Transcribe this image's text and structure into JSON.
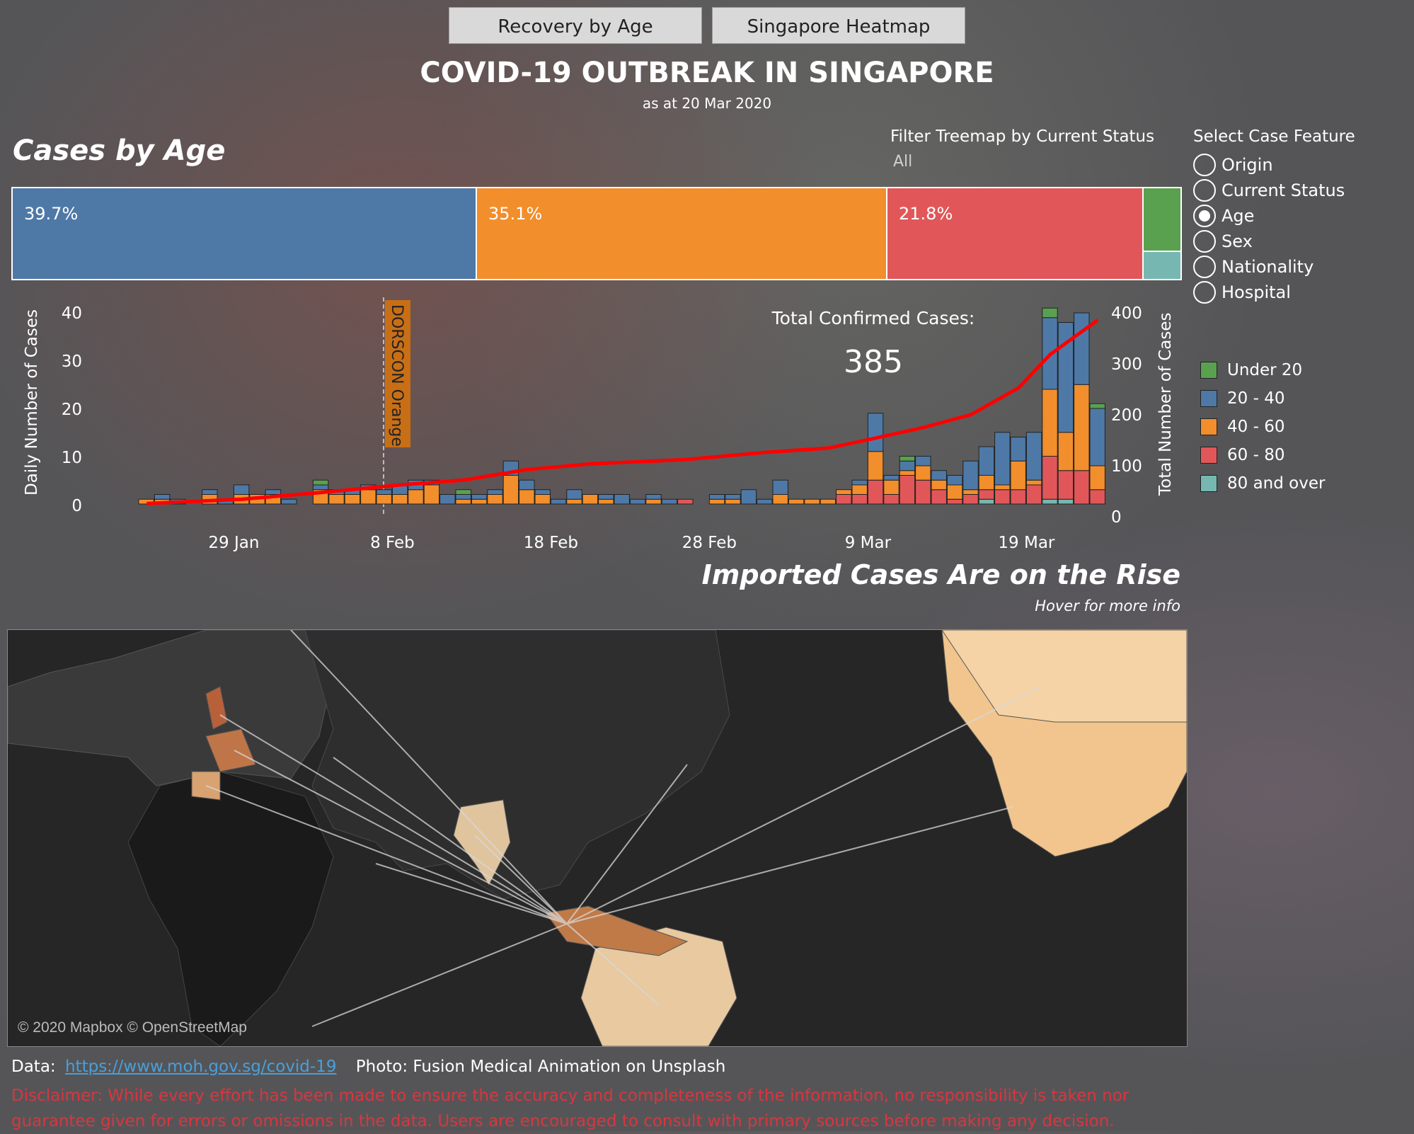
{
  "nav": {
    "button1": "Recovery by Age",
    "button2": "Singapore Heatmap"
  },
  "header": {
    "title": "COVID-19 OUTBREAK IN SINGAPORE",
    "subtitle": "as at 20 Mar 2020"
  },
  "cases_section": {
    "title": "Cases by Age"
  },
  "filter": {
    "label": "Filter Treemap by Current Status",
    "value": "All"
  },
  "feature_select": {
    "label": "Select Case Feature",
    "options": [
      "Origin",
      "Current Status",
      "Age",
      "Sex",
      "Nationality",
      "Hospital"
    ],
    "selected": "Age"
  },
  "treemap": {
    "labels": [
      "39.7%",
      "35.1%",
      "21.8%"
    ],
    "colors": [
      "#4e79a7",
      "#f28e2b",
      "#e15759",
      "#59a14f",
      "#76b7b2"
    ]
  },
  "legend": {
    "items": [
      {
        "label": "Under 20",
        "color": "#59a14f"
      },
      {
        "label": "20 - 40",
        "color": "#4e79a7"
      },
      {
        "label": "40 - 60",
        "color": "#f28e2b"
      },
      {
        "label": "60 - 80",
        "color": "#e15759"
      },
      {
        "label": "80 and over",
        "color": "#76b7b2"
      }
    ]
  },
  "kpi": {
    "label": "Total Confirmed Cases:",
    "value": "385"
  },
  "annotation": {
    "dorscon": "DORSCON Orange"
  },
  "chart_data": {
    "type": "bar",
    "x_tick_labels": [
      "29 Jan",
      "8 Feb",
      "18 Feb",
      "28 Feb",
      "9 Mar",
      "19 Mar"
    ],
    "y_left_label": "Daily Number of Cases",
    "y_right_label": "Total Number of Cases",
    "y_left_ticks": [
      "40",
      "30",
      "20",
      "10",
      "0"
    ],
    "y_right_ticks": [
      "400",
      "300",
      "200",
      "100",
      "0"
    ],
    "ylim_left": [
      0,
      40
    ],
    "ylim_right": [
      0,
      400
    ],
    "stack_order": [
      "80 and over",
      "60 - 80",
      "40 - 60",
      "20 - 40",
      "Under 20"
    ],
    "bars": [
      {
        "date": "23 Jan",
        "stack": [
          0,
          0,
          1,
          0,
          0
        ]
      },
      {
        "date": "24 Jan",
        "stack": [
          0,
          0,
          1,
          1,
          0
        ]
      },
      {
        "date": "25 Jan",
        "stack": [
          0,
          0,
          0,
          1,
          0
        ]
      },
      {
        "date": "27 Jan",
        "stack": [
          0,
          0,
          2,
          1,
          0
        ]
      },
      {
        "date": "28 Jan",
        "stack": [
          0,
          0,
          0,
          1,
          0
        ]
      },
      {
        "date": "29 Jan",
        "stack": [
          0,
          0,
          2,
          2,
          0
        ]
      },
      {
        "date": "30 Jan",
        "stack": [
          0,
          0,
          2,
          0,
          0
        ]
      },
      {
        "date": "31 Jan",
        "stack": [
          0,
          0,
          2,
          1,
          0
        ]
      },
      {
        "date": "1 Feb",
        "stack": [
          0,
          0,
          0,
          1,
          0
        ]
      },
      {
        "date": "3 Feb",
        "stack": [
          0,
          0,
          3,
          1,
          1
        ]
      },
      {
        "date": "4 Feb",
        "stack": [
          0,
          0,
          2,
          1,
          0
        ]
      },
      {
        "date": "5 Feb",
        "stack": [
          0,
          0,
          2,
          1,
          0
        ]
      },
      {
        "date": "6 Feb",
        "stack": [
          0,
          0,
          3,
          1,
          0
        ]
      },
      {
        "date": "7 Feb",
        "stack": [
          0,
          0,
          2,
          1,
          0
        ]
      },
      {
        "date": "8 Feb",
        "stack": [
          0,
          0,
          2,
          2,
          0
        ]
      },
      {
        "date": "9 Feb",
        "stack": [
          0,
          0,
          3,
          2,
          0
        ]
      },
      {
        "date": "10 Feb",
        "stack": [
          0,
          0,
          4,
          1,
          0
        ]
      },
      {
        "date": "11 Feb",
        "stack": [
          0,
          0,
          0,
          2,
          0
        ]
      },
      {
        "date": "12 Feb",
        "stack": [
          0,
          0,
          1,
          1,
          1
        ]
      },
      {
        "date": "13 Feb",
        "stack": [
          0,
          0,
          1,
          1,
          0
        ]
      },
      {
        "date": "14 Feb",
        "stack": [
          0,
          0,
          2,
          1,
          0
        ]
      },
      {
        "date": "15 Feb",
        "stack": [
          0,
          0,
          6,
          3,
          0
        ]
      },
      {
        "date": "16 Feb",
        "stack": [
          0,
          0,
          3,
          2,
          0
        ]
      },
      {
        "date": "17 Feb",
        "stack": [
          0,
          0,
          2,
          1,
          0
        ]
      },
      {
        "date": "18 Feb",
        "stack": [
          0,
          0,
          0,
          1,
          0
        ]
      },
      {
        "date": "19 Feb",
        "stack": [
          0,
          0,
          1,
          2,
          0
        ]
      },
      {
        "date": "20 Feb",
        "stack": [
          0,
          0,
          2,
          0,
          0
        ]
      },
      {
        "date": "21 Feb",
        "stack": [
          0,
          0,
          1,
          1,
          0
        ]
      },
      {
        "date": "22 Feb",
        "stack": [
          0,
          0,
          0,
          2,
          0
        ]
      },
      {
        "date": "23 Feb",
        "stack": [
          0,
          0,
          0,
          1,
          0
        ]
      },
      {
        "date": "24 Feb",
        "stack": [
          0,
          0,
          1,
          1,
          0
        ]
      },
      {
        "date": "25 Feb",
        "stack": [
          0,
          0,
          0,
          1,
          0
        ]
      },
      {
        "date": "26 Feb",
        "stack": [
          0,
          1,
          0,
          0,
          0
        ]
      },
      {
        "date": "28 Feb",
        "stack": [
          0,
          0,
          1,
          1,
          0
        ]
      },
      {
        "date": "29 Feb",
        "stack": [
          0,
          0,
          1,
          1,
          0
        ]
      },
      {
        "date": "1 Mar",
        "stack": [
          0,
          0,
          0,
          3,
          0
        ]
      },
      {
        "date": "2 Mar",
        "stack": [
          0,
          0,
          0,
          1,
          0
        ]
      },
      {
        "date": "3 Mar",
        "stack": [
          0,
          0,
          2,
          3,
          0
        ]
      },
      {
        "date": "4 Mar",
        "stack": [
          0,
          0,
          1,
          0,
          0
        ]
      },
      {
        "date": "5 Mar",
        "stack": [
          0,
          0,
          1,
          0,
          0
        ]
      },
      {
        "date": "6 Mar",
        "stack": [
          0,
          0,
          1,
          0,
          0
        ]
      },
      {
        "date": "7 Mar",
        "stack": [
          0,
          2,
          1,
          0,
          0
        ]
      },
      {
        "date": "8 Mar",
        "stack": [
          0,
          2,
          2,
          1,
          0
        ]
      },
      {
        "date": "9 Mar",
        "stack": [
          0,
          5,
          6,
          8,
          0
        ]
      },
      {
        "date": "10 Mar",
        "stack": [
          0,
          2,
          3,
          1,
          0
        ]
      },
      {
        "date": "11 Mar",
        "stack": [
          0,
          6,
          1,
          2,
          1
        ]
      },
      {
        "date": "12 Mar",
        "stack": [
          0,
          5,
          3,
          2,
          0
        ]
      },
      {
        "date": "13 Mar",
        "stack": [
          0,
          3,
          2,
          2,
          0
        ]
      },
      {
        "date": "14 Mar",
        "stack": [
          0,
          1,
          3,
          2,
          0
        ]
      },
      {
        "date": "15 Mar",
        "stack": [
          0,
          2,
          1,
          6,
          0
        ]
      },
      {
        "date": "16 Mar",
        "stack": [
          1,
          2,
          3,
          6,
          0
        ]
      },
      {
        "date": "17 Mar",
        "stack": [
          0,
          3,
          1,
          11,
          0
        ]
      },
      {
        "date": "18 Mar",
        "stack": [
          0,
          3,
          6,
          5,
          0
        ]
      },
      {
        "date": "19 Mar",
        "stack": [
          0,
          4,
          1,
          10,
          0
        ]
      },
      {
        "date": "20 Mar",
        "stack": [
          1,
          9,
          14,
          15,
          2
        ]
      },
      {
        "date": "21 Mar",
        "stack": [
          1,
          6,
          8,
          23,
          0
        ]
      },
      {
        "date": "22 Mar",
        "stack": [
          0,
          7,
          18,
          15,
          0
        ]
      },
      {
        "date": "23 Mar",
        "stack": [
          0,
          3,
          5,
          12,
          1
        ]
      }
    ],
    "cumulative_line": [
      {
        "date": "23 Jan",
        "total": 1
      },
      {
        "date": "29 Jan",
        "total": 10
      },
      {
        "date": "3 Feb",
        "total": 24
      },
      {
        "date": "8 Feb",
        "total": 40
      },
      {
        "date": "12 Feb",
        "total": 50
      },
      {
        "date": "16 Feb",
        "total": 72
      },
      {
        "date": "20 Feb",
        "total": 84
      },
      {
        "date": "26 Feb",
        "total": 93
      },
      {
        "date": "2 Mar",
        "total": 108
      },
      {
        "date": "6 Mar",
        "total": 117
      },
      {
        "date": "9 Mar",
        "total": 138
      },
      {
        "date": "12 Mar",
        "total": 160
      },
      {
        "date": "15 Mar",
        "total": 187
      },
      {
        "date": "18 Mar",
        "total": 243
      },
      {
        "date": "20 Mar",
        "total": 313
      },
      {
        "date": "23 Mar",
        "total": 385
      }
    ],
    "line_color": "#ff0000",
    "reference_line": {
      "date": "7 Feb",
      "label": "DORSCON Orange"
    }
  },
  "imported_section": {
    "title": "Imported Cases Are on the Rise",
    "hint": "Hover for more info"
  },
  "map": {
    "attribution": "© 2020 Mapbox © OpenStreetMap"
  },
  "footer": {
    "data_label": "Data:",
    "data_link": "https://www.moh.gov.sg/covid-19",
    "photo_credit": "Photo: Fusion Medical Animation on Unsplash",
    "disclaimer": "Disclaimer: While every effort has been made to ensure the accuracy and completeness of the information, no responsibility is taken nor guarantee given for errors or omissions in the data. Users are encouraged to consult with primary sources before making any decision."
  }
}
